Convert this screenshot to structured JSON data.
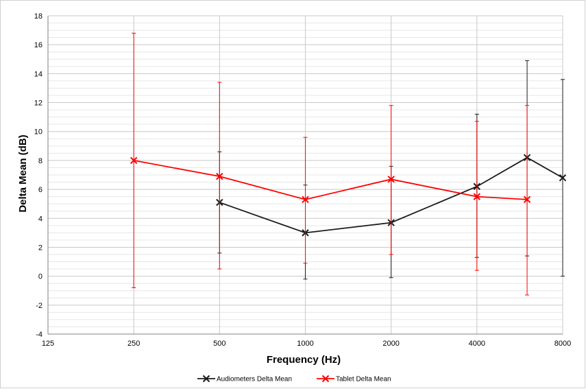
{
  "chart_data": {
    "type": "line",
    "title": "",
    "xlabel": "Frequency (Hz)",
    "ylabel": "Delta Mean (dB)",
    "x_scale": "log2",
    "x_ticks": [
      "125",
      "250",
      "500",
      "1000",
      "2000",
      "4000",
      "8000"
    ],
    "x_tick_values": [
      125,
      250,
      500,
      1000,
      2000,
      4000,
      8000
    ],
    "xlim": [
      125,
      8000
    ],
    "ylim": [
      -4,
      18
    ],
    "y_ticks": [
      "-4",
      "-2",
      "0",
      "2",
      "4",
      "6",
      "8",
      "10",
      "12",
      "14",
      "16",
      "18"
    ],
    "grid": "on",
    "legend_position": "bottom",
    "series": [
      {
        "name": "Audiometers Delta Mean",
        "color": "#1a1a1a",
        "marker": "x",
        "points": [
          {
            "x": 500,
            "y": 5.1,
            "low": 1.6,
            "high": 8.6
          },
          {
            "x": 1000,
            "y": 3.0,
            "low": -0.2,
            "high": 6.3
          },
          {
            "x": 2000,
            "y": 3.7,
            "low": -0.1,
            "high": 7.6
          },
          {
            "x": 4000,
            "y": 6.2,
            "low": 1.3,
            "high": 11.2
          },
          {
            "x": 6000,
            "y": 8.2,
            "low": 1.4,
            "high": 14.9
          },
          {
            "x": 8000,
            "y": 6.8,
            "low": 0.0,
            "high": 13.6
          }
        ]
      },
      {
        "name": "Tablet Delta Mean",
        "color": "#ff0000",
        "marker": "x",
        "points": [
          {
            "x": 250,
            "y": 8.0,
            "low": -0.8,
            "high": 16.8
          },
          {
            "x": 500,
            "y": 6.9,
            "low": 0.5,
            "high": 13.4
          },
          {
            "x": 1000,
            "y": 5.3,
            "low": 0.9,
            "high": 9.6
          },
          {
            "x": 2000,
            "y": 6.7,
            "low": 1.5,
            "high": 11.8
          },
          {
            "x": 4000,
            "y": 5.5,
            "low": 0.4,
            "high": 10.7
          },
          {
            "x": 6000,
            "y": 5.3,
            "low": -1.3,
            "high": 11.8
          }
        ]
      }
    ]
  }
}
